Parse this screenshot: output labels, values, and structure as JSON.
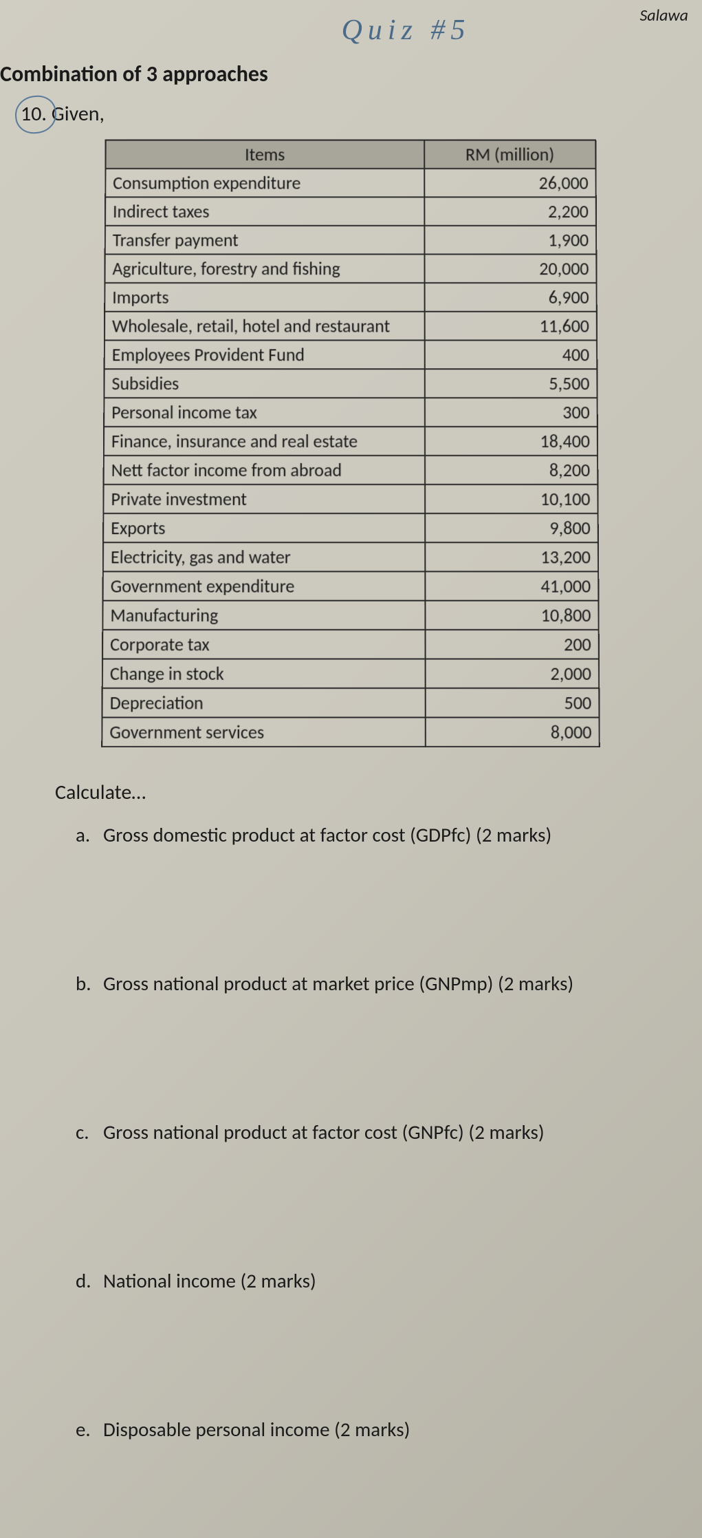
{
  "header": {
    "handwritten_title": "Quiz #5",
    "top_right": "Salawa",
    "section_heading": "Combination of 3 approaches",
    "question_number": "10.",
    "question_intro": "Given,"
  },
  "table": {
    "col_header_1": "Items",
    "col_header_2": "RM (million)",
    "columns_align": [
      "left",
      "right"
    ],
    "header_bg": "#a8a59a",
    "border_color": "#2a2a2a",
    "rows": [
      {
        "item": "Consumption expenditure",
        "value": "26,000"
      },
      {
        "item": "Indirect taxes",
        "value": "2,200"
      },
      {
        "item": "Transfer payment",
        "value": "1,900"
      },
      {
        "item": "Agriculture, forestry and fishing",
        "value": "20,000"
      },
      {
        "item": "Imports",
        "value": "6,900"
      },
      {
        "item": "Wholesale, retail, hotel and restaurant",
        "value": "11,600"
      },
      {
        "item": "Employees Provident Fund",
        "value": "400"
      },
      {
        "item": "Subsidies",
        "value": "5,500"
      },
      {
        "item": "Personal income tax",
        "value": "300"
      },
      {
        "item": "Finance, insurance and real estate",
        "value": "18,400"
      },
      {
        "item": "Nett factor income from abroad",
        "value": "8,200"
      },
      {
        "item": "Private investment",
        "value": "10,100"
      },
      {
        "item": "Exports",
        "value": "9,800"
      },
      {
        "item": "Electricity, gas and water",
        "value": "13,200"
      },
      {
        "item": "Government expenditure",
        "value": "41,000"
      },
      {
        "item": "Manufacturing",
        "value": "10,800"
      },
      {
        "item": "Corporate tax",
        "value": "200"
      },
      {
        "item": "Change in stock",
        "value": "2,000"
      },
      {
        "item": "Depreciation",
        "value": "500"
      },
      {
        "item": "Government services",
        "value": "8,000"
      }
    ]
  },
  "calculate": {
    "heading": "Calculate…",
    "subs": [
      {
        "letter": "a.",
        "text": "Gross domestic product at factor cost (GDPfc)  (2 marks)"
      },
      {
        "letter": "b.",
        "text": "Gross national product at market price (GNPmp)  (2 marks)"
      },
      {
        "letter": "c.",
        "text": "Gross national product at factor cost (GNPfc)  (2 marks)"
      },
      {
        "letter": "d.",
        "text": "National income  (2 marks)"
      },
      {
        "letter": "e.",
        "text": "Disposable personal income  (2 marks)"
      }
    ]
  },
  "style": {
    "page_bg": "#c8c5ba",
    "text_color": "#1a1a1a",
    "handwriting_color": "#4a6a8a",
    "base_font_size": 28
  }
}
